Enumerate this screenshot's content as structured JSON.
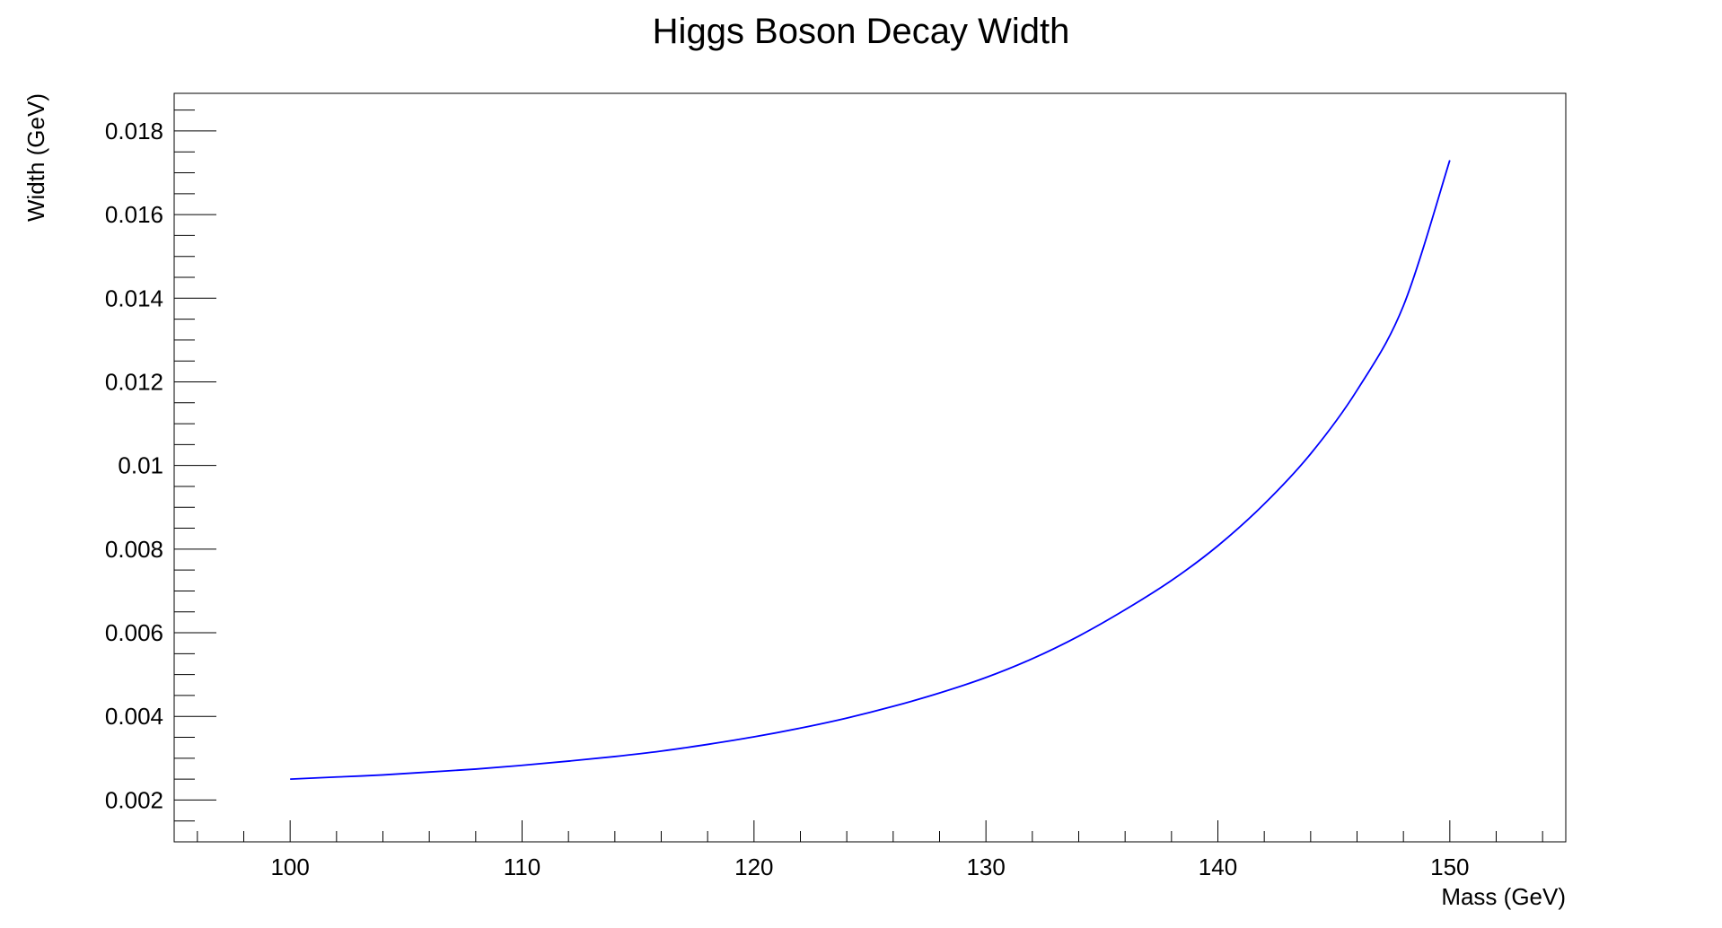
{
  "chart_data": {
    "type": "line",
    "title": "Higgs Boson Decay Width",
    "xlabel": "Mass (GeV)",
    "ylabel": "Width (GeV)",
    "xlim": [
      95,
      155
    ],
    "ylim": [
      0.001,
      0.0189
    ],
    "x_ticks": [
      100,
      110,
      120,
      130,
      140,
      150
    ],
    "x_tick_labels": [
      "100",
      "110",
      "120",
      "130",
      "140",
      "150"
    ],
    "y_ticks": [
      0.002,
      0.004,
      0.006,
      0.008,
      0.01,
      0.012,
      0.014,
      0.016,
      0.018
    ],
    "y_tick_labels": [
      "0.002",
      "0.004",
      "0.006",
      "0.008",
      "0.01",
      "0.012",
      "0.014",
      "0.016",
      "0.018"
    ],
    "grid": false,
    "series": [
      {
        "color": "#0000ff",
        "x": [
          100,
          102,
          104,
          106,
          108,
          110,
          112,
          114,
          116,
          118,
          120,
          122,
          124,
          126,
          128,
          130,
          132,
          134,
          136,
          138,
          140,
          142,
          144,
          146,
          148,
          150
        ],
        "y": [
          0.0025,
          0.00255,
          0.0026,
          0.00267,
          0.00274,
          0.00283,
          0.00293,
          0.00304,
          0.00317,
          0.00333,
          0.00351,
          0.00372,
          0.00396,
          0.00424,
          0.00456,
          0.00493,
          0.00538,
          0.00592,
          0.00655,
          0.00725,
          0.00808,
          0.00908,
          0.01028,
          0.0118,
          0.01382,
          0.0173
        ]
      }
    ]
  }
}
